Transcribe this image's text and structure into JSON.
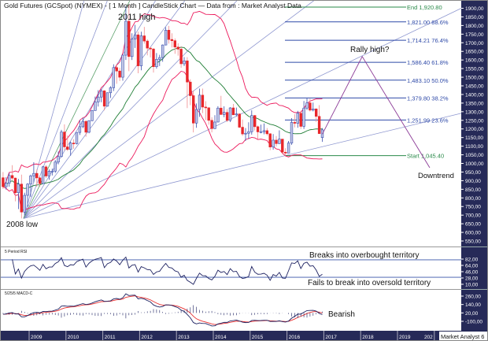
{
  "header": {
    "title": "Gold Futures (GCSpot) (NYMEX) -  [ 1 Month ] CandleStick Chart — Data from : Market Analyst Data"
  },
  "annotations": {
    "high_2011": "2011 high",
    "low_2008": "2008 low",
    "rally_high": "Rally high?",
    "downtrend": "Downtrend",
    "rsi_overbought": "Breaks into overbought territory",
    "rsi_oversold": "Fails to break into oversold territory",
    "macd_bearish": "Bearish"
  },
  "indicators": {
    "rsi_label": "5 Period RSI",
    "macd_label": "5/25/5 MACD-C",
    "rsi_levels": [
      80,
      30
    ]
  },
  "fibonacci": [
    {
      "label": "End 1,920.80",
      "value": 1920.8
    },
    {
      "label": "1,821.00 88.6%",
      "value": 1821.0
    },
    {
      "label": "1,714.21 76.4%",
      "value": 1714.21
    },
    {
      "label": "1,586.40 61.8%",
      "value": 1586.4
    },
    {
      "label": "1,483.10 50.0%",
      "value": 1483.1
    },
    {
      "label": "1,379.80 38.2%",
      "value": 1379.8
    },
    {
      "label": "1,251.99 23.6%",
      "value": 1251.99
    },
    {
      "label": "Start 1,045.40",
      "value": 1045.4
    }
  ],
  "footer": {
    "brand": "Market Analyst 6"
  },
  "colors": {
    "up": "#3a4fae",
    "up_fill": "#c3c8e6",
    "down": "#e8262a",
    "bands": "#ec1a5c",
    "ma": "#1e7d34",
    "fan": "#8e97d0",
    "fib": "#2f4aa8",
    "fib_end": "#2a8a4a",
    "axis_bg": "#262a58",
    "projection": "#8b3a96"
  },
  "chart_data": {
    "type": "candlestick",
    "title": "Gold Futures (GCSpot) (NYMEX) -  [ 1 Month ] CandleStick Chart — Data from : Market Analyst Data",
    "ylim": [
      530,
      1930
    ],
    "y_ticks": [
      "1900,00",
      "1850,00",
      "1800,00",
      "1750,00",
      "1700,00",
      "1650,00",
      "1600,00",
      "1550,00",
      "1500,00",
      "1450,00",
      "1400,00",
      "1350,00",
      "1300,00",
      "1250,00",
      "1200,00",
      "1150,00",
      "1100,00",
      "1050,00",
      "1000,00",
      "950,00",
      "900,00",
      "850,00",
      "800,00",
      "750,00",
      "700,00",
      "650,00",
      "600,00",
      "550,00"
    ],
    "rsi_ticks": [
      "82,00",
      "64,00",
      "46,00",
      "28,00",
      "10,00"
    ],
    "macd_ticks": [
      "260,00",
      "140,00",
      "20,00",
      "-100,00"
    ],
    "x_ticks": [
      "2009",
      "2010",
      "2011",
      "2012",
      "2013",
      "2014",
      "2015",
      "2016",
      "2017",
      "2018",
      "2019",
      "202"
    ],
    "projection": [
      {
        "date": "2016-12",
        "price": 1170
      },
      {
        "date": "2018-01",
        "price": 1620
      },
      {
        "date": "2019-11",
        "price": 975
      }
    ],
    "candles": [
      [
        "2008-04",
        917,
        950,
        852,
        865
      ],
      [
        "2008-05",
        865,
        920,
        848,
        885
      ],
      [
        "2008-06",
        885,
        945,
        865,
        930
      ],
      [
        "2008-07",
        930,
        990,
        905,
        915
      ],
      [
        "2008-08",
        915,
        918,
        780,
        830
      ],
      [
        "2008-09",
        830,
        910,
        735,
        880
      ],
      [
        "2008-10",
        880,
        935,
        681,
        718
      ],
      [
        "2008-11",
        718,
        830,
        700,
        815
      ],
      [
        "2008-12",
        815,
        885,
        750,
        880
      ],
      [
        "2009-01",
        880,
        935,
        805,
        928
      ],
      [
        "2009-02",
        928,
        1007,
        890,
        942
      ],
      [
        "2009-03",
        942,
        965,
        865,
        916
      ],
      [
        "2009-04",
        916,
        920,
        865,
        883
      ],
      [
        "2009-05",
        883,
        985,
        880,
        980
      ],
      [
        "2009-06",
        980,
        990,
        915,
        927
      ],
      [
        "2009-07",
        927,
        965,
        905,
        955
      ],
      [
        "2009-08",
        955,
        970,
        930,
        955
      ],
      [
        "2009-09",
        955,
        1020,
        945,
        1008
      ],
      [
        "2009-10",
        1008,
        1070,
        995,
        1040
      ],
      [
        "2009-11",
        1040,
        1195,
        1035,
        1182
      ],
      [
        "2009-12",
        1182,
        1227,
        1075,
        1096
      ],
      [
        "2010-01",
        1096,
        1162,
        1072,
        1081
      ],
      [
        "2010-02",
        1081,
        1127,
        1045,
        1118
      ],
      [
        "2010-03",
        1118,
        1140,
        1085,
        1115
      ],
      [
        "2010-04",
        1115,
        1180,
        1110,
        1180
      ],
      [
        "2010-05",
        1180,
        1250,
        1165,
        1213
      ],
      [
        "2010-06",
        1213,
        1265,
        1205,
        1244
      ],
      [
        "2010-07",
        1244,
        1250,
        1155,
        1181
      ],
      [
        "2010-08",
        1181,
        1250,
        1175,
        1248
      ],
      [
        "2010-09",
        1248,
        1310,
        1245,
        1307
      ],
      [
        "2010-10",
        1307,
        1388,
        1305,
        1357
      ],
      [
        "2010-11",
        1357,
        1425,
        1330,
        1385
      ],
      [
        "2010-12",
        1385,
        1432,
        1355,
        1421
      ],
      [
        "2011-01",
        1421,
        1425,
        1308,
        1332
      ],
      [
        "2011-02",
        1332,
        1412,
        1330,
        1410
      ],
      [
        "2011-03",
        1410,
        1448,
        1380,
        1439
      ],
      [
        "2011-04",
        1439,
        1575,
        1420,
        1556
      ],
      [
        "2011-05",
        1556,
        1577,
        1462,
        1536
      ],
      [
        "2011-06",
        1536,
        1555,
        1478,
        1500
      ],
      [
        "2011-07",
        1500,
        1632,
        1480,
        1628
      ],
      [
        "2011-08",
        1628,
        1912,
        1600,
        1825
      ],
      [
        "2011-09",
        1825,
        1920.8,
        1535,
        1620
      ],
      [
        "2011-10",
        1620,
        1755,
        1600,
        1722
      ],
      [
        "2011-11",
        1722,
        1804,
        1670,
        1746
      ],
      [
        "2011-12",
        1746,
        1764,
        1523,
        1566
      ],
      [
        "2012-01",
        1566,
        1764,
        1540,
        1740
      ],
      [
        "2012-02",
        1740,
        1792,
        1695,
        1710
      ],
      [
        "2012-03",
        1710,
        1720,
        1627,
        1669
      ],
      [
        "2012-04",
        1669,
        1677,
        1615,
        1664
      ],
      [
        "2012-05",
        1664,
        1668,
        1527,
        1561
      ],
      [
        "2012-06",
        1561,
        1640,
        1550,
        1604
      ],
      [
        "2012-07",
        1604,
        1630,
        1565,
        1614
      ],
      [
        "2012-08",
        1614,
        1690,
        1590,
        1687
      ],
      [
        "2012-09",
        1687,
        1790,
        1685,
        1773
      ],
      [
        "2012-10",
        1773,
        1798,
        1695,
        1719
      ],
      [
        "2012-11",
        1719,
        1755,
        1673,
        1712
      ],
      [
        "2012-12",
        1712,
        1725,
        1636,
        1675
      ],
      [
        "2013-01",
        1675,
        1697,
        1625,
        1663
      ],
      [
        "2013-02",
        1663,
        1680,
        1555,
        1578
      ],
      [
        "2013-03",
        1578,
        1617,
        1565,
        1595
      ],
      [
        "2013-04",
        1595,
        1616,
        1321,
        1472
      ],
      [
        "2013-05",
        1472,
        1488,
        1338,
        1393
      ],
      [
        "2013-06",
        1393,
        1424,
        1180,
        1234
      ],
      [
        "2013-07",
        1234,
        1348,
        1207,
        1313
      ],
      [
        "2013-08",
        1313,
        1434,
        1270,
        1396
      ],
      [
        "2013-09",
        1396,
        1434,
        1292,
        1327
      ],
      [
        "2013-10",
        1327,
        1361,
        1251,
        1323
      ],
      [
        "2013-11",
        1323,
        1322,
        1225,
        1250
      ],
      [
        "2013-12",
        1250,
        1268,
        1180,
        1202
      ],
      [
        "2014-01",
        1202,
        1280,
        1200,
        1240
      ],
      [
        "2014-02",
        1240,
        1332,
        1238,
        1321
      ],
      [
        "2014-03",
        1321,
        1392,
        1281,
        1284
      ],
      [
        "2014-04",
        1284,
        1331,
        1268,
        1296
      ],
      [
        "2014-05",
        1296,
        1315,
        1240,
        1250
      ],
      [
        "2014-06",
        1250,
        1326,
        1240,
        1322
      ],
      [
        "2014-07",
        1322,
        1345,
        1283,
        1282
      ],
      [
        "2014-08",
        1282,
        1324,
        1273,
        1287
      ],
      [
        "2014-09",
        1287,
        1290,
        1205,
        1210
      ],
      [
        "2014-10",
        1210,
        1255,
        1160,
        1171
      ],
      [
        "2014-11",
        1171,
        1205,
        1131,
        1175
      ],
      [
        "2014-12",
        1175,
        1239,
        1142,
        1184
      ],
      [
        "2015-01",
        1184,
        1308,
        1167,
        1278
      ],
      [
        "2015-02",
        1278,
        1280,
        1191,
        1213
      ],
      [
        "2015-03",
        1213,
        1220,
        1142,
        1183
      ],
      [
        "2015-04",
        1183,
        1225,
        1175,
        1184
      ],
      [
        "2015-05",
        1184,
        1232,
        1169,
        1190
      ],
      [
        "2015-06",
        1190,
        1205,
        1162,
        1172
      ],
      [
        "2015-07",
        1172,
        1175,
        1077,
        1095
      ],
      [
        "2015-08",
        1095,
        1170,
        1080,
        1135
      ],
      [
        "2015-09",
        1135,
        1159,
        1098,
        1115
      ],
      [
        "2015-10",
        1115,
        1192,
        1113,
        1141
      ],
      [
        "2015-11",
        1141,
        1142,
        1053,
        1065
      ],
      [
        "2015-12",
        1065,
        1088,
        1045.4,
        1060
      ],
      [
        "2016-01",
        1060,
        1130,
        1062,
        1118
      ],
      [
        "2016-02",
        1118,
        1263,
        1108,
        1238
      ],
      [
        "2016-03",
        1238,
        1285,
        1209,
        1233
      ],
      [
        "2016-04",
        1233,
        1305,
        1207,
        1291
      ],
      [
        "2016-05",
        1291,
        1306,
        1200,
        1215
      ],
      [
        "2016-06",
        1215,
        1362,
        1200,
        1321
      ],
      [
        "2016-07",
        1321,
        1378,
        1310,
        1351
      ],
      [
        "2016-08",
        1351,
        1375,
        1301,
        1309
      ],
      [
        "2016-09",
        1309,
        1353,
        1302,
        1316
      ],
      [
        "2016-10",
        1316,
        1320,
        1241,
        1273
      ],
      [
        "2016-11",
        1273,
        1338,
        1171,
        1173
      ],
      [
        "2016-12",
        1150,
        1205,
        1125,
        1195
      ]
    ]
  }
}
